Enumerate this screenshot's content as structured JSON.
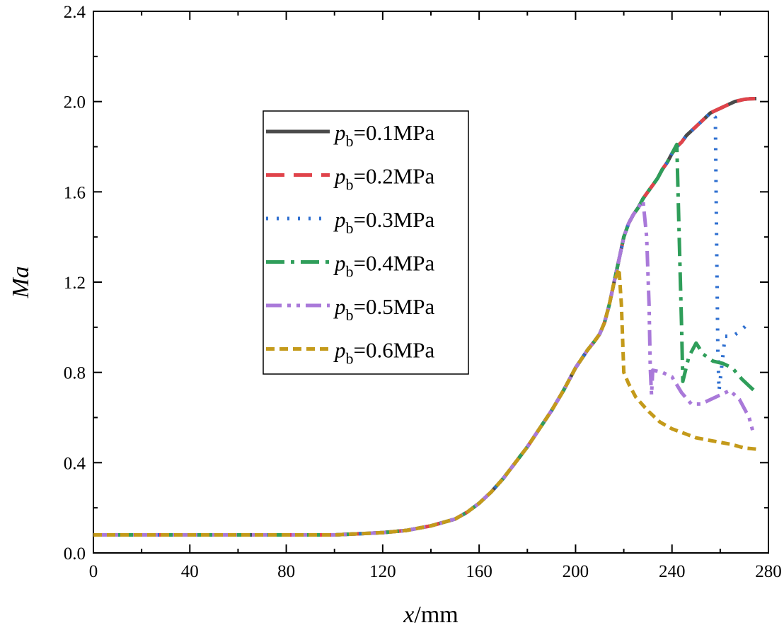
{
  "chart_data": {
    "type": "line",
    "title": "",
    "xlabel": {
      "italic": "x",
      "rest": "/mm"
    },
    "ylabel": "Ma",
    "xlim": [
      0,
      280
    ],
    "ylim": [
      0,
      2.4
    ],
    "xticks": [
      "0",
      "40",
      "80",
      "120",
      "160",
      "200",
      "240",
      "280"
    ],
    "yticks": [
      "0.0",
      "0.4",
      "0.8",
      "1.2",
      "1.6",
      "2.0",
      "2.4"
    ],
    "legend_position": "upper-center",
    "base_profile": {
      "x": [
        0,
        20,
        40,
        60,
        80,
        100,
        110,
        120,
        130,
        140,
        150,
        155,
        160,
        165,
        170,
        175,
        180,
        185,
        190,
        195,
        200,
        205,
        208,
        210,
        212,
        214,
        216,
        218,
        220,
        222,
        224,
        226,
        228,
        230,
        232,
        234,
        236,
        238,
        240,
        242,
        244,
        246,
        248,
        250,
        252,
        254,
        256,
        258,
        260,
        262,
        264,
        266,
        268,
        270,
        272,
        275
      ],
      "y": [
        0.08,
        0.08,
        0.08,
        0.08,
        0.08,
        0.08,
        0.085,
        0.09,
        0.1,
        0.12,
        0.15,
        0.18,
        0.22,
        0.27,
        0.33,
        0.4,
        0.47,
        0.55,
        0.63,
        0.72,
        0.82,
        0.9,
        0.94,
        0.97,
        1.02,
        1.1,
        1.2,
        1.3,
        1.4,
        1.46,
        1.5,
        1.53,
        1.57,
        1.6,
        1.63,
        1.66,
        1.7,
        1.73,
        1.77,
        1.8,
        1.82,
        1.85,
        1.87,
        1.89,
        1.91,
        1.93,
        1.95,
        1.96,
        1.97,
        1.98,
        1.99,
        2.0,
        2.005,
        2.01,
        2.012,
        2.013
      ]
    },
    "series": [
      {
        "name": "0.1MPa",
        "label_prefix": "p",
        "label_sub": "b",
        "color": "#4a4a4a",
        "dash": "",
        "shock_x": null,
        "post_shock": []
      },
      {
        "name": "0.2MPa",
        "label_prefix": "p",
        "label_sub": "b",
        "color": "#e0434a",
        "dash": "26,13",
        "shock_x": null,
        "post_shock": []
      },
      {
        "name": "0.3MPa",
        "label_prefix": "p",
        "label_sub": "b",
        "color": "#2e6fd0",
        "dash": "3,12",
        "shock_x": 258,
        "post_shock": [
          [
            258,
            1.93
          ],
          [
            258.5,
            1.4
          ],
          [
            259,
            0.9
          ],
          [
            259.5,
            0.72
          ],
          [
            262,
            0.96
          ],
          [
            265,
            0.96
          ],
          [
            268,
            0.98
          ],
          [
            271,
            1.01
          ],
          [
            273,
            1.0
          ]
        ]
      },
      {
        "name": "0.4MPa",
        "label_prefix": "p",
        "label_sub": "b",
        "color": "#2f9e5a",
        "dash": "26,9,5,9",
        "shock_x": 242,
        "post_shock": [
          [
            242,
            1.81
          ],
          [
            243,
            1.4
          ],
          [
            244,
            1.0
          ],
          [
            244.5,
            0.76
          ],
          [
            247,
            0.87
          ],
          [
            250,
            0.93
          ],
          [
            253,
            0.88
          ],
          [
            257,
            0.85
          ],
          [
            261,
            0.84
          ],
          [
            265,
            0.82
          ],
          [
            269,
            0.77
          ],
          [
            272,
            0.74
          ],
          [
            274,
            0.72
          ]
        ]
      },
      {
        "name": "0.5MPa",
        "label_prefix": "p",
        "label_sub": "b",
        "color": "#a979d9",
        "dash": "22,8,5,8,5,8",
        "shock_x": 228,
        "post_shock": [
          [
            228,
            1.56
          ],
          [
            229.5,
            1.4
          ],
          [
            230.5,
            1.1
          ],
          [
            231,
            0.82
          ],
          [
            231.5,
            0.7
          ],
          [
            232,
            0.81
          ],
          [
            236,
            0.8
          ],
          [
            240,
            0.78
          ],
          [
            244,
            0.71
          ],
          [
            248,
            0.66
          ],
          [
            252,
            0.66
          ],
          [
            256,
            0.68
          ],
          [
            260,
            0.7
          ],
          [
            264,
            0.72
          ],
          [
            268,
            0.68
          ],
          [
            272,
            0.6
          ],
          [
            274,
            0.52
          ]
        ]
      },
      {
        "name": "0.6MPa",
        "label_prefix": "p",
        "label_sub": "b",
        "color": "#c49a1a",
        "dash": "12,7",
        "shock_x": 218,
        "post_shock": [
          [
            218,
            1.26
          ],
          [
            219,
            1.1
          ],
          [
            219.5,
            0.95
          ],
          [
            220,
            0.8
          ],
          [
            222,
            0.75
          ],
          [
            225,
            0.69
          ],
          [
            230,
            0.63
          ],
          [
            235,
            0.58
          ],
          [
            240,
            0.55
          ],
          [
            245,
            0.53
          ],
          [
            250,
            0.51
          ],
          [
            255,
            0.5
          ],
          [
            260,
            0.49
          ],
          [
            265,
            0.48
          ],
          [
            270,
            0.465
          ],
          [
            275,
            0.46
          ]
        ]
      }
    ]
  }
}
